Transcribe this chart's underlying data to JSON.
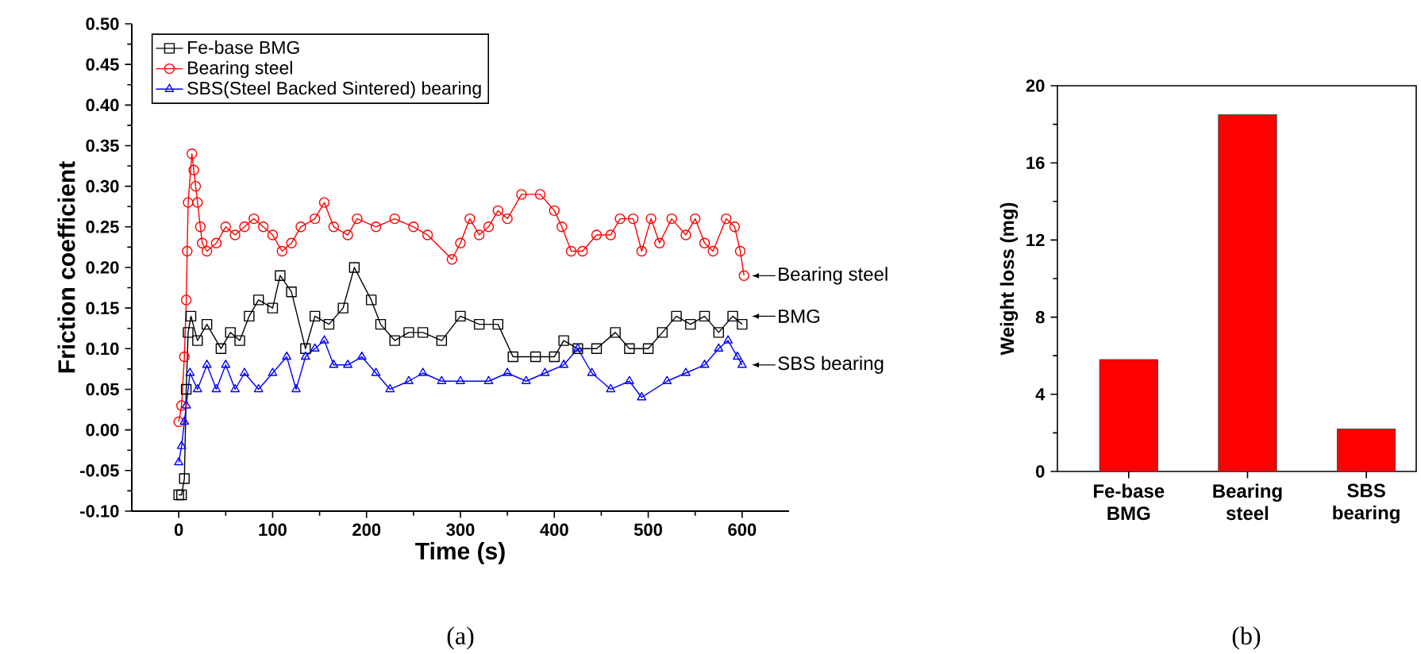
{
  "chart_data": [
    {
      "type": "line",
      "xlabel": "Time (s)",
      "ylabel": "Friction coefficient",
      "xlim": [
        -50,
        650
      ],
      "xticks": [
        0,
        100,
        200,
        300,
        400,
        500,
        600
      ],
      "ylim": [
        -0.1,
        0.5
      ],
      "yticks": [
        {
          "value": -0.1,
          "label": "-0.10"
        },
        -0.05,
        {
          "value": 0,
          "label": "0.00"
        },
        0.05,
        {
          "value": 0.1,
          "label": "0.10"
        },
        0.15,
        {
          "value": 0.2,
          "label": "0.20"
        },
        0.25,
        {
          "value": 0.3,
          "label": "0.30"
        },
        0.35,
        {
          "value": 0.4,
          "label": "0.40"
        },
        0.45,
        {
          "value": 0.5,
          "label": "0.50"
        }
      ],
      "legend": "top left",
      "grid": false,
      "series": [
        {
          "name": "Fe-base BMG",
          "color": "#000000",
          "marker": "square",
          "x": [
            0,
            3,
            6,
            8,
            10,
            13,
            20,
            30,
            45,
            55,
            65,
            75,
            85,
            100,
            108,
            120,
            135,
            145,
            160,
            175,
            187,
            205,
            215,
            230,
            245,
            260,
            280,
            300,
            320,
            340,
            356,
            380,
            400,
            410,
            425,
            445,
            465,
            480,
            500,
            515,
            530,
            545,
            560,
            575,
            590,
            600
          ],
          "values": [
            -0.08,
            -0.08,
            -0.06,
            0.05,
            0.12,
            0.14,
            0.11,
            0.13,
            0.1,
            0.12,
            0.11,
            0.14,
            0.16,
            0.15,
            0.19,
            0.17,
            0.1,
            0.14,
            0.13,
            0.15,
            0.2,
            0.16,
            0.13,
            0.11,
            0.12,
            0.12,
            0.11,
            0.14,
            0.13,
            0.13,
            0.09,
            0.09,
            0.09,
            0.11,
            0.1,
            0.1,
            0.12,
            0.1,
            0.1,
            0.12,
            0.14,
            0.13,
            0.14,
            0.12,
            0.14,
            0.13
          ]
        },
        {
          "name": "Bearing steel",
          "color": "#ff0000",
          "marker": "circle",
          "x": [
            0,
            3,
            6,
            8,
            9,
            10,
            14,
            16,
            18,
            20,
            23,
            25,
            30,
            40,
            50,
            60,
            70,
            80,
            90,
            100,
            110,
            120,
            130,
            145,
            155,
            165,
            180,
            190,
            210,
            230,
            250,
            265,
            291,
            300,
            310,
            320,
            330,
            340,
            350,
            365,
            385,
            400,
            408,
            418,
            430,
            445,
            460,
            470,
            484,
            493,
            503,
            512,
            525,
            540,
            550,
            560,
            569,
            583,
            592,
            598,
            602
          ],
          "values": [
            0.01,
            0.03,
            0.09,
            0.16,
            0.22,
            0.28,
            0.34,
            0.32,
            0.3,
            0.28,
            0.25,
            0.23,
            0.22,
            0.23,
            0.25,
            0.24,
            0.25,
            0.26,
            0.25,
            0.24,
            0.22,
            0.23,
            0.25,
            0.26,
            0.28,
            0.25,
            0.24,
            0.26,
            0.25,
            0.26,
            0.25,
            0.24,
            0.21,
            0.23,
            0.26,
            0.24,
            0.25,
            0.27,
            0.26,
            0.29,
            0.29,
            0.27,
            0.25,
            0.22,
            0.22,
            0.24,
            0.24,
            0.26,
            0.26,
            0.22,
            0.26,
            0.23,
            0.26,
            0.24,
            0.26,
            0.23,
            0.22,
            0.26,
            0.25,
            0.22,
            0.19
          ]
        },
        {
          "name": "SBS(Steel Backed Sintered) bearing",
          "color": "#0000ff",
          "marker": "triangle",
          "x": [
            0,
            3,
            6,
            8,
            12,
            20,
            30,
            40,
            50,
            60,
            70,
            85,
            100,
            115,
            125,
            135,
            145,
            155,
            165,
            180,
            195,
            210,
            225,
            245,
            260,
            280,
            300,
            330,
            350,
            370,
            390,
            410,
            425,
            440,
            460,
            480,
            493,
            520,
            540,
            560,
            575,
            585,
            595,
            600
          ],
          "values": [
            -0.04,
            -0.02,
            0.01,
            0.03,
            0.07,
            0.05,
            0.08,
            0.05,
            0.08,
            0.05,
            0.07,
            0.05,
            0.07,
            0.09,
            0.05,
            0.09,
            0.1,
            0.11,
            0.08,
            0.08,
            0.09,
            0.07,
            0.05,
            0.06,
            0.07,
            0.06,
            0.06,
            0.06,
            0.07,
            0.06,
            0.07,
            0.08,
            0.1,
            0.07,
            0.05,
            0.06,
            0.04,
            0.06,
            0.07,
            0.08,
            0.1,
            0.11,
            0.09,
            0.08
          ]
        }
      ],
      "annotations": [
        "Bearing steel",
        "BMG",
        "SBS bearing",
        "(a)"
      ]
    },
    {
      "type": "bar",
      "ylabel": "Weight loss (mg)",
      "categories": [
        "Fe-base BMG",
        "Bearing steel",
        "SBS bearing"
      ],
      "values": [
        5.8,
        18.5,
        2.2
      ],
      "color": "#ff0000",
      "ylim": [
        0,
        20
      ],
      "yticks": [
        0,
        4,
        8,
        12,
        16,
        20
      ],
      "annotations": [
        "(b)"
      ]
    }
  ]
}
